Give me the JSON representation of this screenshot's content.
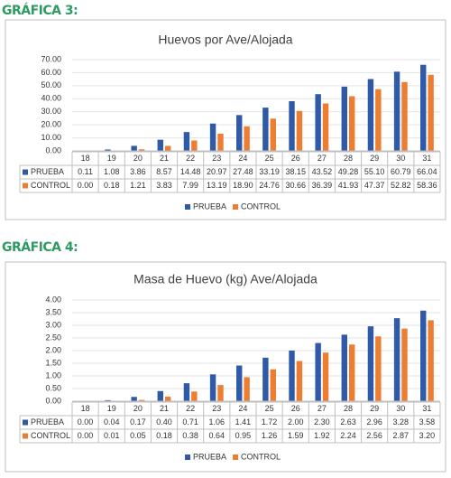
{
  "chart_data": [
    {
      "type": "bar",
      "heading": "GRÁFICA 3:",
      "title": "Huevos por Ave/Alojada",
      "categories": [
        "18",
        "19",
        "20",
        "21",
        "22",
        "23",
        "24",
        "25",
        "26",
        "27",
        "28",
        "29",
        "30",
        "31"
      ],
      "series": [
        {
          "name": "PRUEBA",
          "color": "#2f5aa8",
          "values": [
            0.11,
            1.08,
            3.86,
            8.57,
            14.48,
            20.97,
            27.48,
            33.19,
            38.15,
            43.52,
            49.28,
            55.1,
            60.79,
            66.04
          ],
          "value_labels": [
            "0.11",
            "1.08",
            "3.86",
            "8.57",
            "14.48",
            "20.97",
            "27.48",
            "33.19",
            "38.15",
            "43.52",
            "49.28",
            "55.10",
            "60.79",
            "66.04"
          ]
        },
        {
          "name": "CONTROL",
          "color": "#ed7d31",
          "values": [
            0.0,
            0.18,
            1.21,
            3.83,
            7.99,
            13.19,
            18.9,
            24.76,
            30.66,
            36.39,
            41.93,
            47.37,
            52.82,
            58.36
          ],
          "value_labels": [
            "0.00",
            "0.18",
            "1.21",
            "3.83",
            "7.99",
            "13.19",
            "18.90",
            "24.76",
            "30.66",
            "36.39",
            "41.93",
            "47.37",
            "52.82",
            "58.36"
          ]
        }
      ],
      "ylim": [
        0,
        70
      ],
      "yticks": [
        {
          "value": 0,
          "label": "0.00"
        },
        {
          "value": 10,
          "label": "10.00"
        },
        {
          "value": 20,
          "label": "20.00"
        },
        {
          "value": 30,
          "label": "30.00"
        },
        {
          "value": 40,
          "label": "40.00"
        },
        {
          "value": 50,
          "label": "50.00"
        },
        {
          "value": 60,
          "label": "60.00"
        },
        {
          "value": 70,
          "label": "70.00"
        }
      ],
      "grid": true
    },
    {
      "type": "bar",
      "heading": "GRÁFICA 4:",
      "title": "Masa de Huevo (kg) Ave/Alojada",
      "categories": [
        "18",
        "19",
        "20",
        "21",
        "22",
        "23",
        "24",
        "25",
        "26",
        "27",
        "28",
        "29",
        "30",
        "31"
      ],
      "series": [
        {
          "name": "PRUEBA",
          "color": "#2f5aa8",
          "values": [
            0.0,
            0.04,
            0.17,
            0.4,
            0.71,
            1.06,
            1.41,
            1.72,
            2.0,
            2.3,
            2.63,
            2.96,
            3.28,
            3.58
          ],
          "value_labels": [
            "0.00",
            "0.04",
            "0.17",
            "0.40",
            "0.71",
            "1.06",
            "1.41",
            "1.72",
            "2.00",
            "2.30",
            "2.63",
            "2.96",
            "3.28",
            "3.58"
          ]
        },
        {
          "name": "CONTROL",
          "color": "#ed7d31",
          "values": [
            0.0,
            0.01,
            0.05,
            0.18,
            0.38,
            0.64,
            0.95,
            1.26,
            1.59,
            1.92,
            2.24,
            2.56,
            2.87,
            3.2
          ],
          "value_labels": [
            "0.00",
            "0.01",
            "0.05",
            "0.18",
            "0.38",
            "0.64",
            "0.95",
            "1.26",
            "1.59",
            "1.92",
            "2.24",
            "2.56",
            "2.87",
            "3.20"
          ]
        }
      ],
      "ylim": [
        0,
        4
      ],
      "yticks": [
        {
          "value": 0,
          "label": "0.00"
        },
        {
          "value": 0.5,
          "label": "0.50"
        },
        {
          "value": 1,
          "label": "1.00"
        },
        {
          "value": 1.5,
          "label": "1.50"
        },
        {
          "value": 2,
          "label": "2.00"
        },
        {
          "value": 2.5,
          "label": "2.50"
        },
        {
          "value": 3,
          "label": "3.00"
        },
        {
          "value": 3.5,
          "label": "3.50"
        },
        {
          "value": 4,
          "label": "4.00"
        }
      ],
      "grid": true
    }
  ]
}
